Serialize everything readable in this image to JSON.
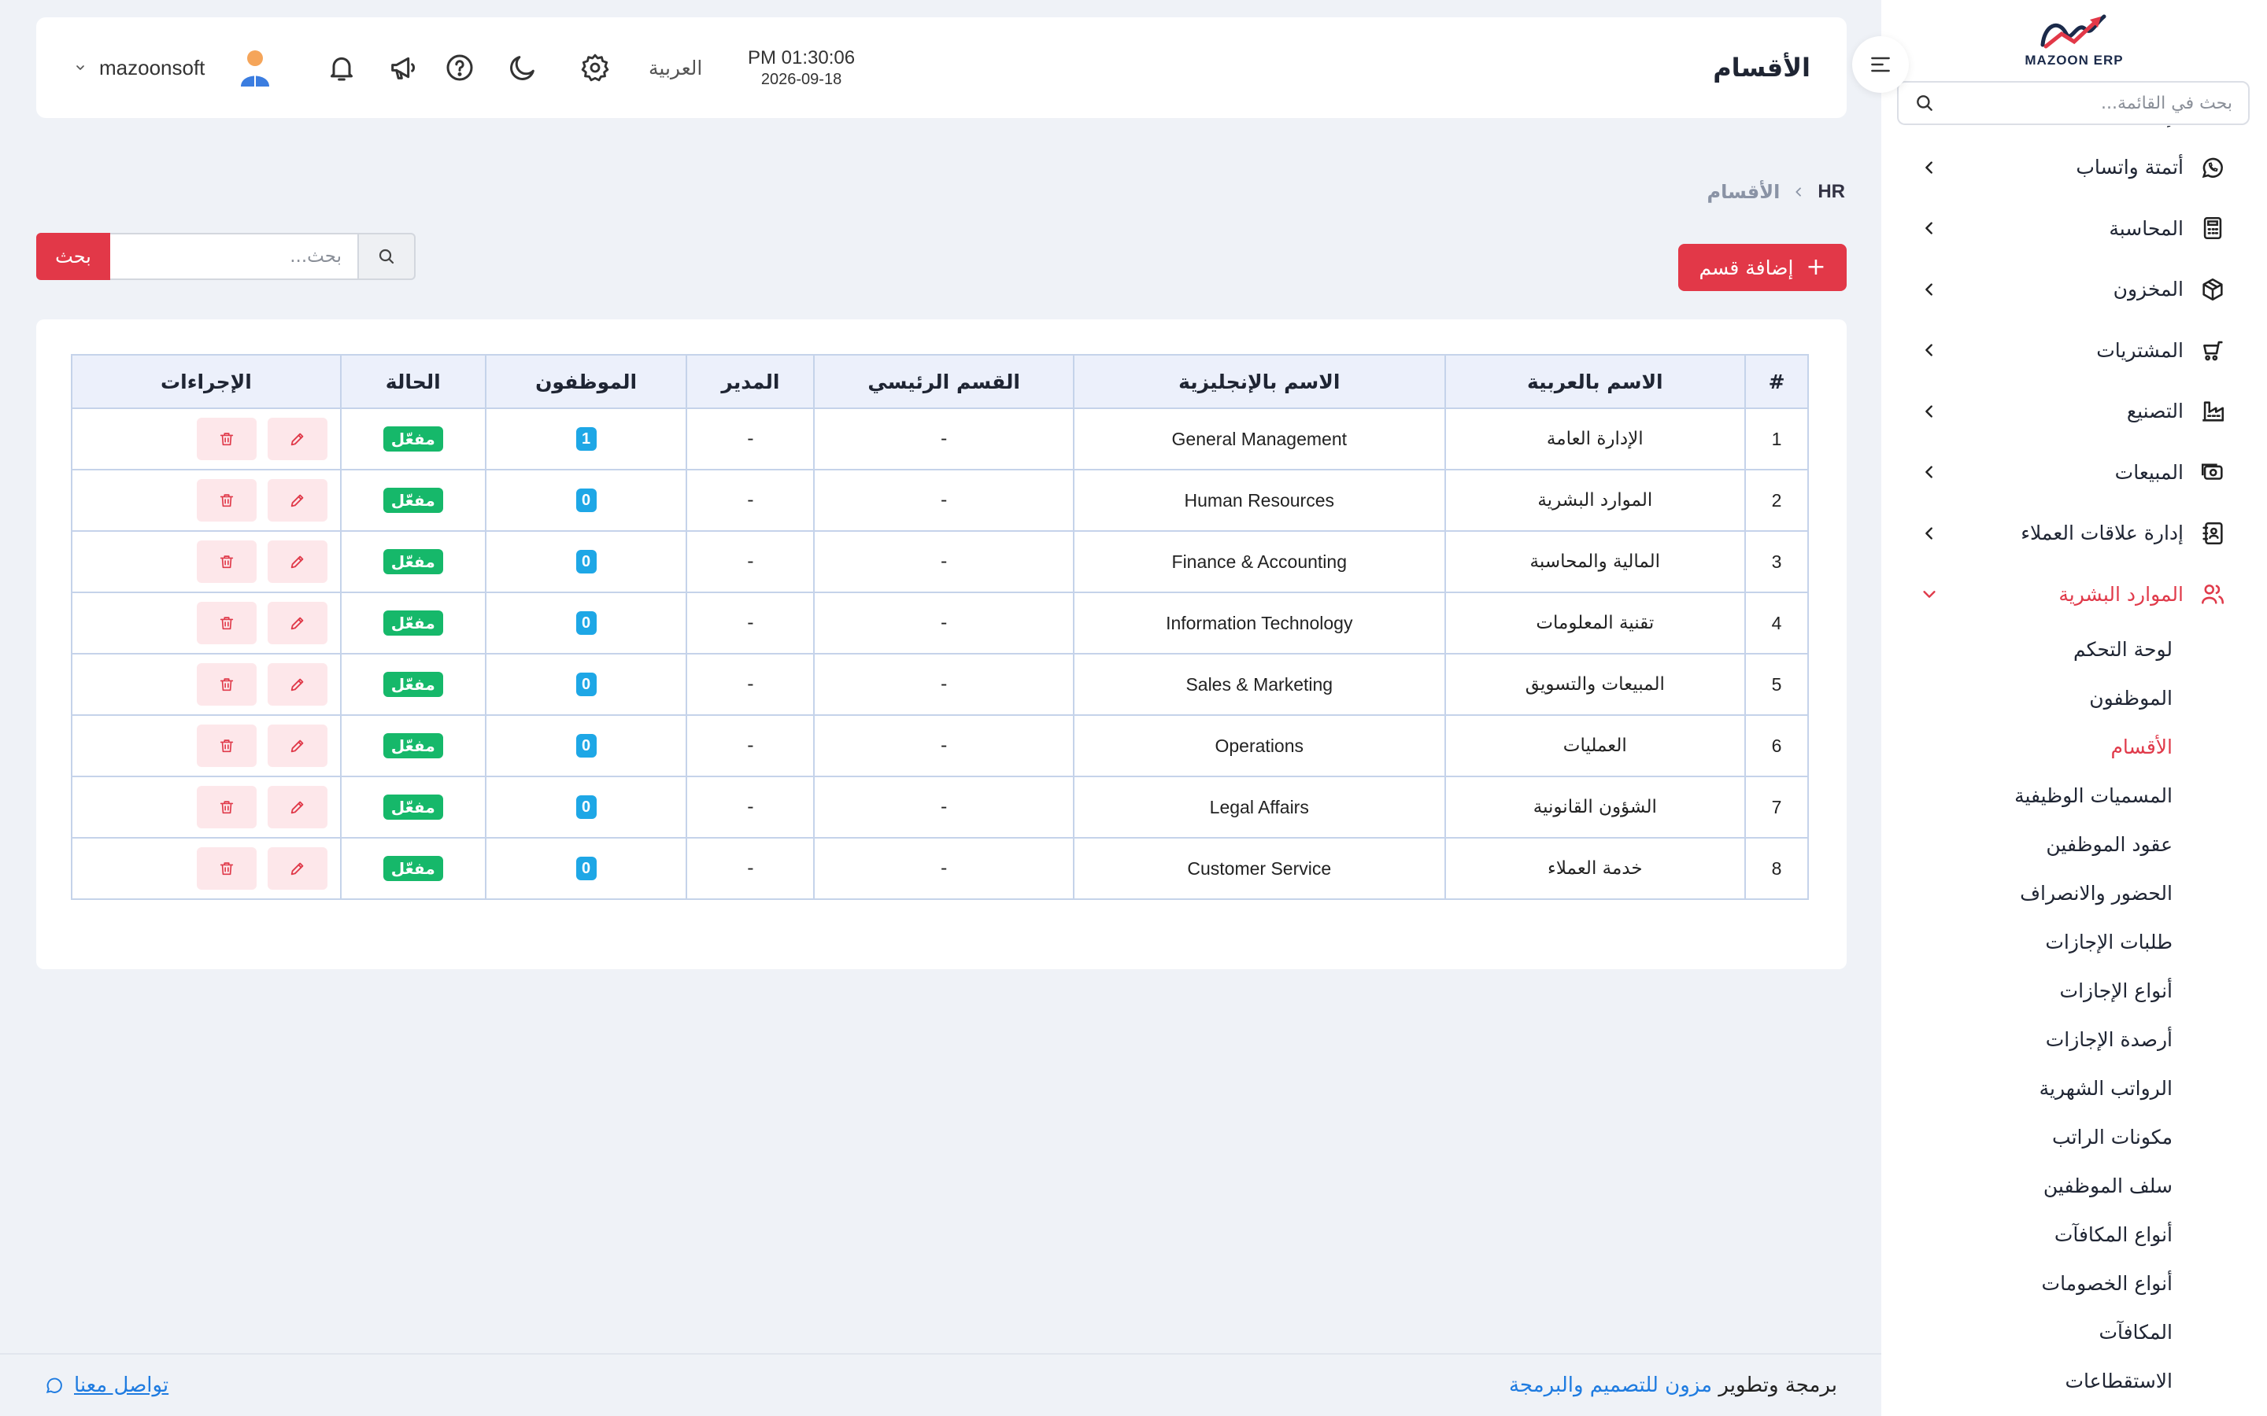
{
  "brand": {
    "logo_text": "MAZOON ERP",
    "logo_sub": "ERP"
  },
  "sidebar": {
    "search_placeholder": "بحث في القائمة...",
    "partial_item": "الإعدادات العامة",
    "items": [
      {
        "label": "أتمتة واتساب",
        "icon": "whatsapp-icon"
      },
      {
        "label": "المحاسبة",
        "icon": "calculator-icon"
      },
      {
        "label": "المخزون",
        "icon": "box-icon"
      },
      {
        "label": "المشتريات",
        "icon": "cart-icon"
      },
      {
        "label": "التصنيع",
        "icon": "factory-icon"
      },
      {
        "label": "المبيعات",
        "icon": "cash-icon"
      },
      {
        "label": "إدارة علاقات العملاء",
        "icon": "contacts-icon"
      },
      {
        "label": "الموارد البشرية",
        "icon": "users-icon",
        "active": true
      }
    ],
    "hr_sub": [
      "لوحة التحكم",
      "الموظفون",
      "الأقسام",
      "المسميات الوظيفية",
      "عقود الموظفين",
      "الحضور والانصراف",
      "طلبات الإجازات",
      "أنواع الإجازات",
      "أرصدة الإجازات",
      "الرواتب الشهرية",
      "مكونات الراتب",
      "سلف الموظفين",
      "أنواع المكافآت",
      "أنواع الخصومات",
      "المكافآت",
      "الاستقطاعات"
    ],
    "hr_sub_active_index": 2
  },
  "header": {
    "title": "الأقسام",
    "time": "PM 01:30:06",
    "date": "2026-09-18",
    "language": "العربية",
    "username": "mazoonsoft"
  },
  "breadcrumb": {
    "root": "HR",
    "current": "الأقسام"
  },
  "toolbar": {
    "add_label": "إضافة قسم",
    "search_placeholder": "بحث...",
    "search_button": "بحث"
  },
  "table": {
    "columns": [
      "#",
      "الاسم بالعربية",
      "الاسم بالإنجليزية",
      "القسم الرئيسي",
      "المدير",
      "الموظفون",
      "الحالة",
      "الإجراءات"
    ],
    "rows": [
      {
        "n": "1",
        "ar": "الإدارة العامة",
        "en": "General Management",
        "parent": "-",
        "manager": "-",
        "employees": "1",
        "status": "مفعّل"
      },
      {
        "n": "2",
        "ar": "الموارد البشرية",
        "en": "Human Resources",
        "parent": "-",
        "manager": "-",
        "employees": "0",
        "status": "مفعّل"
      },
      {
        "n": "3",
        "ar": "المالية والمحاسبة",
        "en": "Finance & Accounting",
        "parent": "-",
        "manager": "-",
        "employees": "0",
        "status": "مفعّل"
      },
      {
        "n": "4",
        "ar": "تقنية المعلومات",
        "en": "Information Technology",
        "parent": "-",
        "manager": "-",
        "employees": "0",
        "status": "مفعّل"
      },
      {
        "n": "5",
        "ar": "المبيعات والتسويق",
        "en": "Sales & Marketing",
        "parent": "-",
        "manager": "-",
        "employees": "0",
        "status": "مفعّل"
      },
      {
        "n": "6",
        "ar": "العمليات",
        "en": "Operations",
        "parent": "-",
        "manager": "-",
        "employees": "0",
        "status": "مفعّل"
      },
      {
        "n": "7",
        "ar": "الشؤون القانونية",
        "en": "Legal Affairs",
        "parent": "-",
        "manager": "-",
        "employees": "0",
        "status": "مفعّل"
      },
      {
        "n": "8",
        "ar": "خدمة العملاء",
        "en": "Customer Service",
        "parent": "-",
        "manager": "-",
        "employees": "0",
        "status": "مفعّل"
      }
    ]
  },
  "footer": {
    "credit_prefix": "برمجة وتطوير",
    "credit_link": "مزون للتصميم والبرمجة",
    "contact": "تواصل معنا"
  },
  "colors": {
    "accent": "#e23848",
    "success": "#16b86a",
    "info": "#1ea7e6",
    "link": "#1e7be0"
  }
}
